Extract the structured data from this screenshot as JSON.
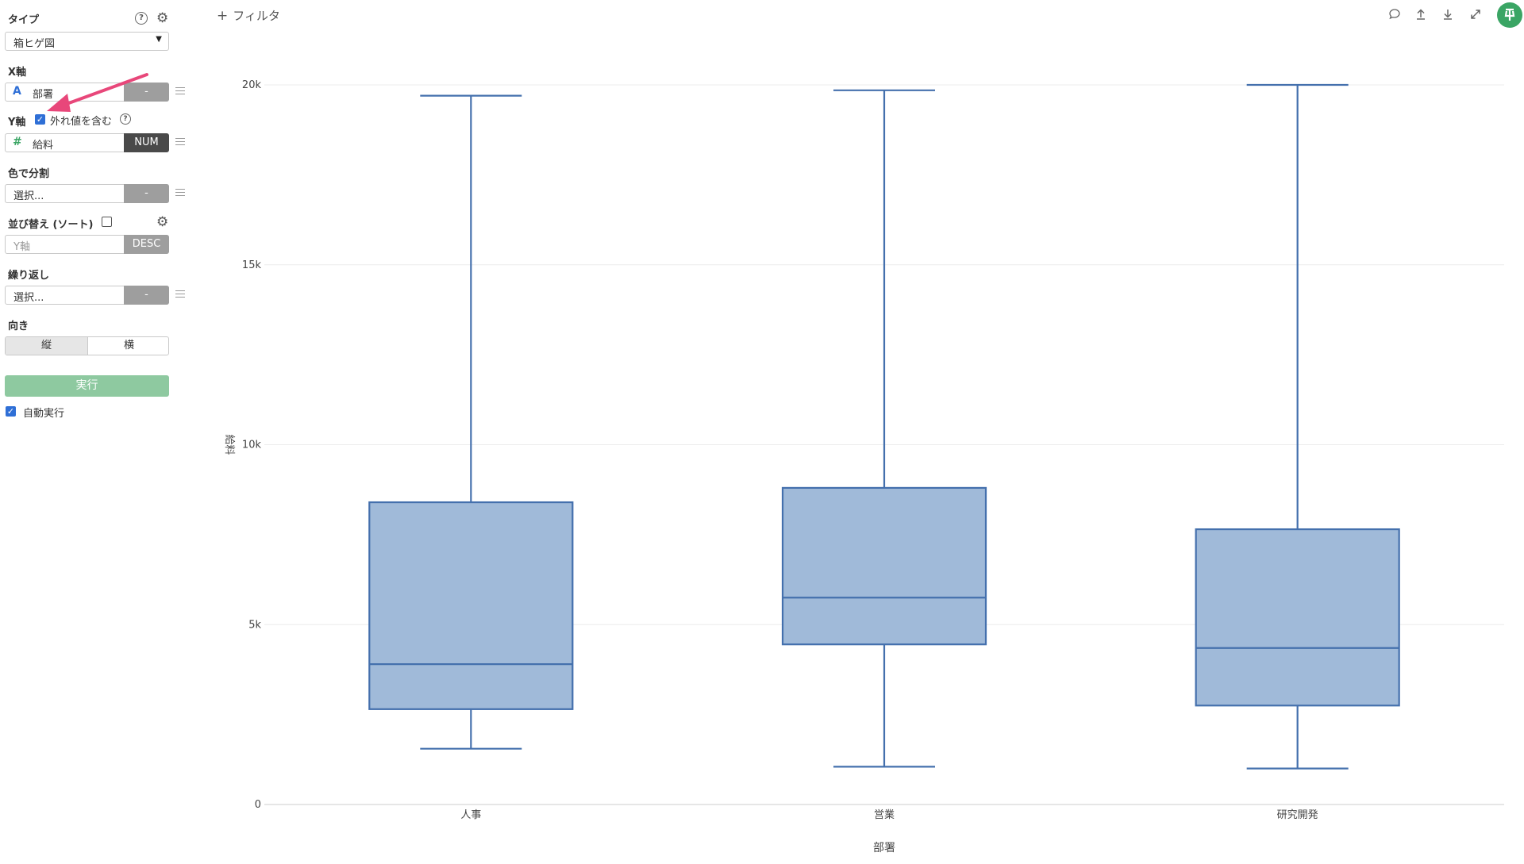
{
  "sidebar": {
    "type_label": "タイプ",
    "type_value": "箱ヒゲ図",
    "xaxis_label": "X軸",
    "xaxis_field": "部署",
    "xaxis_type_icon": "A",
    "xaxis_btn": "-",
    "yaxis_label": "Y軸",
    "include_outliers_label": "外れ値を含む",
    "include_outliers_checked": true,
    "yaxis_field": "給料",
    "yaxis_type_icon": "#",
    "yaxis_btn": "NUM",
    "color_label": "色で分割",
    "color_placeholder": "選択...",
    "color_btn": "-",
    "sort_label": "並び替え (ソート)",
    "sort_checked": false,
    "sort_placeholder": "Y軸",
    "sort_btn": "DESC",
    "repeat_label": "繰り返し",
    "repeat_placeholder": "選択...",
    "repeat_btn": "-",
    "orientation_label": "向き",
    "orientation_options": [
      "縦",
      "横"
    ],
    "orientation_selected": "縦",
    "run_button": "実行",
    "auto_run_label": "自動実行",
    "auto_run_checked": true
  },
  "toolbar": {
    "filter_label": "フィルタ",
    "icons": [
      "comment-icon",
      "upload-icon",
      "download-icon",
      "expand-icon",
      "pin-icon"
    ]
  },
  "colors": {
    "box_fill": "#a0bad9",
    "box_stroke": "#4470ad",
    "run_button": "#8ec9a0",
    "pin_button": "#3aa564",
    "annotation_arrow": "#e8477a"
  },
  "chart_data": {
    "type": "box",
    "title": "",
    "xlabel": "部署",
    "ylabel": "給料",
    "categories": [
      "人事",
      "営業",
      "研究開発"
    ],
    "min": [
      1550,
      1050,
      1000
    ],
    "q1": [
      2650,
      4450,
      2750
    ],
    "median": [
      3900,
      5750,
      4350
    ],
    "q3": [
      8400,
      8800,
      7650
    ],
    "max": [
      19700,
      19850,
      20000
    ],
    "ylim": [
      0,
      20000
    ],
    "yticks": [
      0,
      5000,
      10000,
      15000,
      20000
    ],
    "ytick_labels": [
      "0",
      "5k",
      "10k",
      "15k",
      "20k"
    ],
    "grid": true,
    "legend": "none"
  }
}
